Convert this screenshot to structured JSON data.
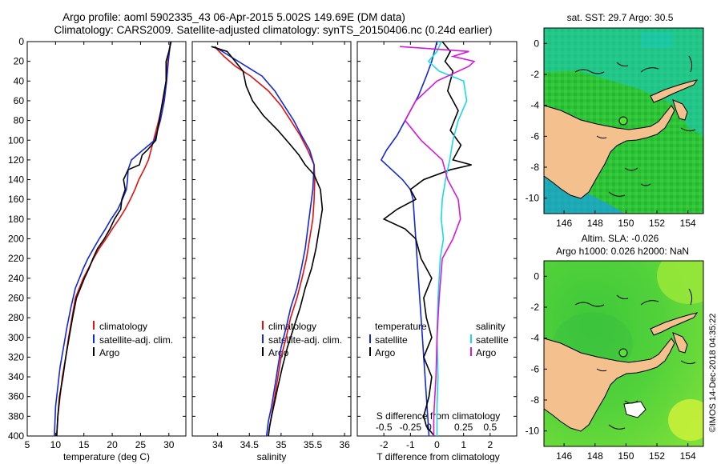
{
  "header": {
    "title1": "Argo profile: aoml 5902335_43 06-Apr-2015 5.002S 149.69E (DM data)",
    "title2": "Climatology: CARS2009. Satellite-adjusted climatology: synTS_20150406.nc (0.24d earlier)"
  },
  "colors": {
    "clim": "#e01010",
    "sat": "#1428d8",
    "argo": "#000000",
    "sat_s": "#18d8e8",
    "clim_s": "#d818d8"
  },
  "chart_data": [
    {
      "type": "line",
      "title": "",
      "xlabel": "temperature (deg C)",
      "ylabel": "",
      "xlim": [
        5,
        33
      ],
      "ylim": [
        400,
        0
      ],
      "xticks": [
        5,
        10,
        15,
        20,
        25,
        30
      ],
      "yticks": [
        0,
        20,
        40,
        60,
        80,
        100,
        120,
        140,
        160,
        180,
        200,
        220,
        240,
        260,
        280,
        300,
        320,
        340,
        360,
        380,
        400
      ],
      "series": [
        {
          "name": "climatology",
          "color": "clim",
          "x": [
            30.3,
            29.8,
            29.5,
            29.0,
            28.2,
            27.3,
            26.4,
            25.6,
            24.7,
            24.0,
            23.2,
            22.3,
            21.2,
            20.0,
            18.9,
            17.7,
            16.7,
            15.8,
            14.9,
            14.2,
            13.5,
            12.9,
            12.3,
            11.8,
            11.2,
            10.8,
            10.4,
            10.2
          ],
          "y": [
            0,
            20,
            40,
            60,
            80,
            100,
            120,
            130,
            140,
            150,
            160,
            170,
            180,
            190,
            200,
            210,
            220,
            230,
            240,
            250,
            260,
            280,
            300,
            320,
            340,
            360,
            380,
            400
          ]
        },
        {
          "name": "satellite-adj. clim.",
          "color": "sat",
          "x": [
            30.3,
            29.9,
            29.6,
            29.2,
            28.5,
            27.5,
            25.4,
            23.4,
            22.8,
            22.7,
            22.5,
            21.8,
            21.0,
            19.8,
            18.8,
            17.7,
            16.7,
            15.7,
            14.9,
            14.2,
            13.5,
            12.7,
            12.0,
            11.4,
            10.8,
            10.4,
            10.0,
            9.8
          ],
          "y": [
            0,
            20,
            40,
            60,
            80,
            100,
            110,
            120,
            130,
            140,
            150,
            160,
            170,
            180,
            190,
            200,
            210,
            220,
            230,
            240,
            250,
            270,
            290,
            310,
            330,
            350,
            370,
            400
          ]
        },
        {
          "name": "Argo",
          "color": "argo",
          "x": [
            30.4,
            30.0,
            29.5,
            29.5,
            28.9,
            28.3,
            27.7,
            26.2,
            25.3,
            24.8,
            22.8,
            22.0,
            22.3,
            21.7,
            21.5,
            20.4,
            19.6,
            18.6,
            17.4,
            16.6,
            15.9,
            15.1,
            14.4,
            13.7,
            13.0,
            12.4,
            11.8,
            11.3,
            10.7,
            10.4,
            10.2
          ],
          "y": [
            0,
            10,
            20,
            40,
            60,
            80,
            100,
            110,
            115,
            125,
            130,
            140,
            150,
            160,
            170,
            180,
            190,
            200,
            210,
            220,
            230,
            240,
            250,
            260,
            280,
            300,
            320,
            340,
            360,
            380,
            400
          ]
        }
      ],
      "legend": [
        "climatology",
        "satellite-adj. clim.",
        "Argo"
      ],
      "legend_position": "bottom-right"
    },
    {
      "type": "line",
      "title": "",
      "xlabel": "salinity",
      "ylabel": "",
      "xlim": [
        33.6,
        36.1
      ],
      "ylim": [
        400,
        0
      ],
      "xticks": [
        34,
        34.5,
        35,
        35.5,
        36
      ],
      "xtick_labels": [
        "34",
        "34.5",
        "35",
        "35.5",
        "36"
      ],
      "series": [
        {
          "name": "climatology",
          "color": "clim",
          "x": [
            33.95,
            34.1,
            34.28,
            34.52,
            34.8,
            35.0,
            35.15,
            35.3,
            35.42,
            35.52,
            35.53,
            35.52,
            35.5,
            35.45,
            35.4,
            35.33,
            35.25,
            35.15,
            35.08,
            35.0,
            34.95,
            34.9,
            34.86,
            34.82,
            34.8
          ],
          "y": [
            5,
            15,
            25,
            35,
            50,
            65,
            80,
            95,
            110,
            125,
            140,
            160,
            180,
            200,
            220,
            240,
            260,
            280,
            300,
            320,
            340,
            360,
            375,
            390,
            400
          ]
        },
        {
          "name": "satellite-adj. clim.",
          "color": "sat",
          "x": [
            33.95,
            34.2,
            34.45,
            34.7,
            34.9,
            35.05,
            35.2,
            35.32,
            35.45,
            35.52,
            35.5,
            35.46,
            35.42,
            35.38,
            35.32,
            35.25,
            35.15,
            35.08,
            35.0,
            34.95,
            34.9,
            34.85,
            34.8,
            34.77
          ],
          "y": [
            5,
            15,
            25,
            35,
            50,
            65,
            80,
            95,
            110,
            125,
            150,
            170,
            190,
            210,
            230,
            250,
            270,
            290,
            310,
            330,
            350,
            370,
            385,
            400
          ]
        },
        {
          "name": "Argo",
          "color": "argo",
          "x": [
            33.9,
            34.15,
            34.4,
            34.45,
            34.55,
            34.72,
            34.95,
            35.15,
            35.28,
            35.38,
            35.52,
            35.62,
            35.65,
            35.6,
            35.55,
            35.48,
            35.38,
            35.3,
            35.2,
            35.1,
            35.02,
            34.95,
            34.9,
            34.85,
            34.82,
            34.8
          ],
          "y": [
            5,
            10,
            30,
            45,
            60,
            75,
            90,
            105,
            115,
            125,
            135,
            150,
            170,
            190,
            210,
            230,
            250,
            270,
            290,
            310,
            330,
            350,
            365,
            380,
            390,
            400
          ]
        }
      ],
      "legend": [
        "climatology",
        "satellite-adj. clim.",
        "Argo"
      ],
      "legend_position": "bottom-right"
    },
    {
      "type": "line",
      "title": "",
      "xlabel": "T difference from climatology",
      "xlabel2": "S difference from climatology",
      "ylabel": "",
      "xlim": [
        -3,
        3
      ],
      "ylim": [
        400,
        0
      ],
      "xticks_T": [
        -2,
        -1,
        0,
        1,
        2
      ],
      "xticks_S": [
        -0.5,
        -0.25,
        0,
        0.25,
        0.5
      ],
      "xtick_labels_S": [
        "-0.5",
        "-0.25",
        "0",
        "0.25",
        "0.5"
      ],
      "series": [
        {
          "name": "temperature satellite",
          "color": "sat",
          "x": [
            0,
            -0.1,
            -0.2,
            -0.4,
            -0.7,
            -1.1,
            -1.5,
            -1.9,
            -2.1,
            -1.7,
            -1.3,
            -1.0,
            -0.9,
            -0.85,
            -0.8,
            -0.75,
            -0.7,
            -0.65,
            -0.6,
            -0.55,
            -0.5,
            -0.45,
            -0.4,
            -0.35,
            -0.3
          ],
          "y": [
            0,
            10,
            20,
            35,
            55,
            75,
            95,
            110,
            120,
            130,
            140,
            150,
            160,
            180,
            200,
            220,
            240,
            260,
            280,
            300,
            320,
            340,
            360,
            380,
            400
          ]
        },
        {
          "name": "temperature Argo",
          "color": "argo",
          "x": [
            0.2,
            0.5,
            0.3,
            0.6,
            0.4,
            0.8,
            0.5,
            0.9,
            0.7,
            0.6,
            1.3,
            0.5,
            -0.5,
            -1.0,
            -0.8,
            -1.5,
            -2.0,
            -1.2,
            -0.8,
            -0.6,
            -0.2,
            -0.5,
            -0.4,
            -0.2,
            -0.5,
            -0.2,
            -0.3,
            -0.5,
            -0.4,
            -0.1
          ],
          "y": [
            0,
            10,
            20,
            30,
            50,
            70,
            90,
            105,
            115,
            120,
            125,
            130,
            140,
            150,
            160,
            170,
            180,
            190,
            200,
            220,
            240,
            260,
            280,
            300,
            320,
            340,
            360,
            380,
            390,
            400
          ]
        },
        {
          "name": "salinity satellite",
          "color": "sat_s",
          "x": [
            0.04,
            0.0,
            -0.08,
            0.02,
            0.25,
            0.28,
            0.2,
            0.15,
            0.12,
            0.08,
            0.05,
            0.04,
            0.06,
            0.03,
            0.02,
            0.01,
            0.0,
            0.01,
            0.0,
            0.0
          ],
          "y": [
            0,
            10,
            20,
            30,
            40,
            60,
            80,
            100,
            120,
            140,
            160,
            180,
            200,
            220,
            240,
            260,
            300,
            340,
            370,
            400
          ]
        },
        {
          "name": "salinity Argo",
          "color": "clim_s",
          "x": [
            -0.35,
            0.3,
            0.15,
            0.35,
            0.3,
            0.0,
            -0.2,
            -0.3,
            -0.15,
            0.05,
            0.1,
            0.2,
            0.22,
            0.15,
            0.05,
            0.02,
            0.0,
            -0.01,
            -0.02,
            -0.03,
            -0.03
          ],
          "y": [
            5,
            10,
            15,
            20,
            25,
            40,
            60,
            80,
            100,
            120,
            140,
            160,
            180,
            200,
            220,
            260,
            300,
            340,
            360,
            380,
            400
          ]
        }
      ],
      "legend_left_title": "temperature",
      "legend_right_title": "salinity",
      "legend_left": [
        "satellite",
        "Argo"
      ],
      "legend_right": [
        "satellite",
        "Argo"
      ]
    },
    {
      "type": "heatmap",
      "title": "sat. SST: 29.7 Argo: 30.5",
      "xticks": [
        "146",
        "148",
        "150",
        "152",
        "154"
      ],
      "yticks": [
        "0",
        "-2",
        "-4",
        "-6",
        "-8",
        "-10"
      ],
      "xlim": [
        144.7,
        155
      ],
      "ylim": [
        -11,
        1
      ],
      "marker": {
        "lon": 149.69,
        "lat": -5.002
      }
    },
    {
      "type": "heatmap",
      "title": "Altim. SLA: -0.026",
      "subtitle": "Argo h1000: 0.026 h2000: NaN",
      "xticks": [
        "146",
        "148",
        "150",
        "152",
        "154"
      ],
      "yticks": [
        "0",
        "-2",
        "-4",
        "-6",
        "-8",
        "-10"
      ],
      "xlim": [
        144.7,
        155
      ],
      "ylim": [
        -11,
        1
      ],
      "marker": {
        "lon": 149.69,
        "lat": -5.002
      }
    }
  ],
  "credit": "©IMOS 14-Dec-2018 04:35:22"
}
